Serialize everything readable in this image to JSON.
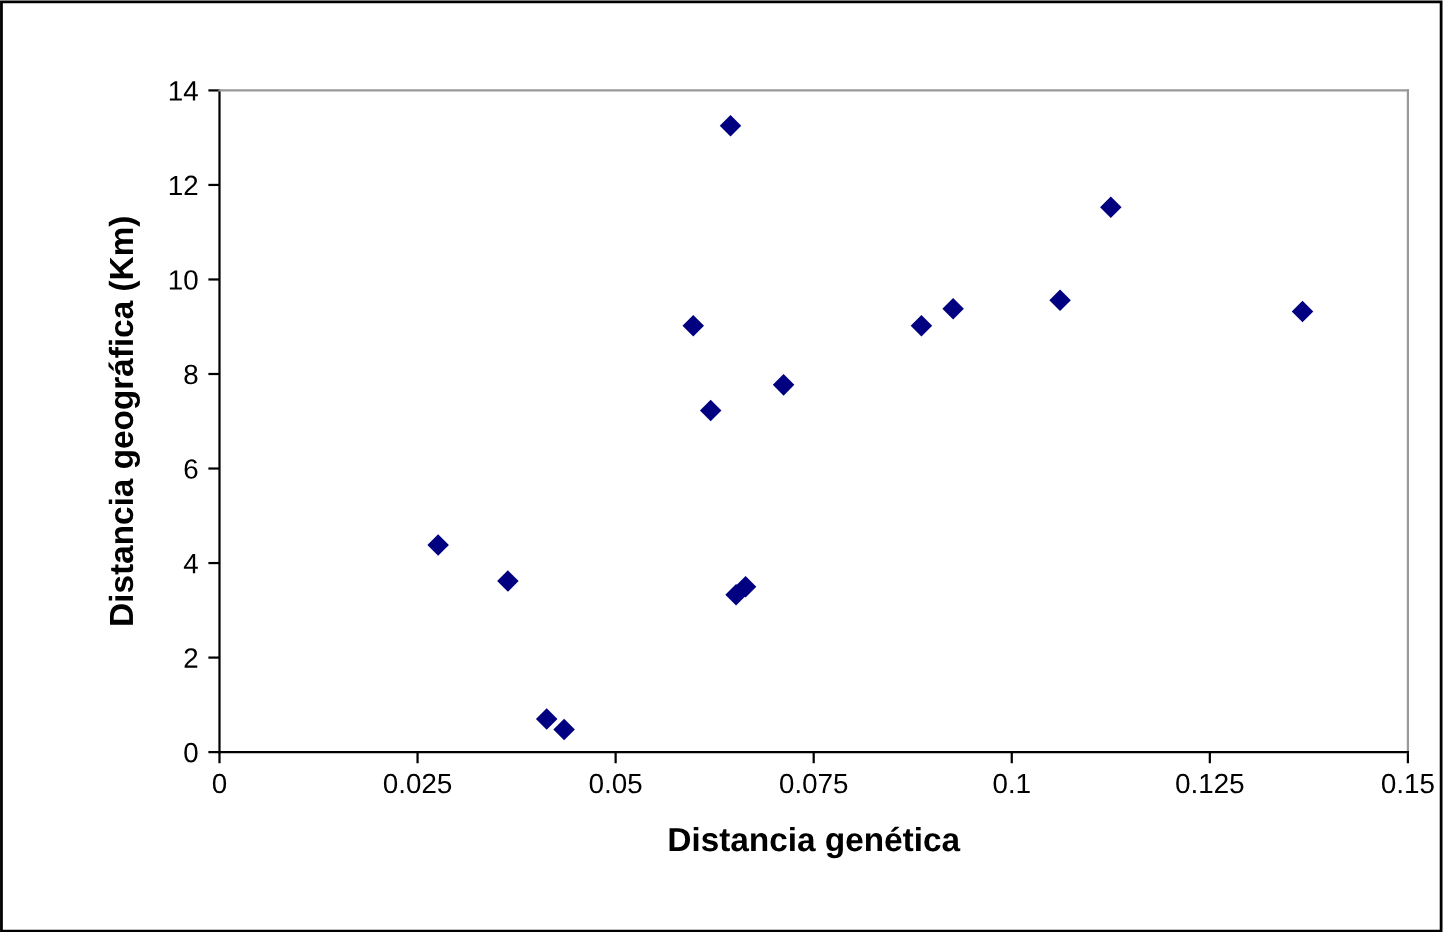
{
  "chart_data": {
    "type": "scatter",
    "xlabel": "Distancia genética",
    "ylabel": "Distancia geográfica (Km)",
    "x": [
      0.0645,
      0.0598,
      0.0712,
      0.062,
      0.0276,
      0.0364,
      0.0652,
      0.0664,
      0.0413,
      0.0435,
      0.0886,
      0.0926,
      0.1061,
      0.1125,
      0.1367
    ],
    "series": [
      {
        "color": "#000080",
        "values": [
          13.25,
          9.02,
          7.77,
          7.23,
          4.38,
          3.62,
          3.33,
          3.5,
          0.7,
          0.48,
          9.02,
          9.38,
          9.56,
          11.53,
          9.32
        ]
      }
    ],
    "marker": "diamond",
    "xlim": [
      0,
      0.15
    ],
    "xticks": [
      0,
      0.025,
      0.05,
      0.075,
      0.1,
      0.125,
      0.15
    ],
    "ylim": [
      0,
      14
    ],
    "yticks": [
      0,
      2,
      4,
      6,
      8,
      10,
      12,
      14
    ],
    "grid": false,
    "legend": false
  }
}
